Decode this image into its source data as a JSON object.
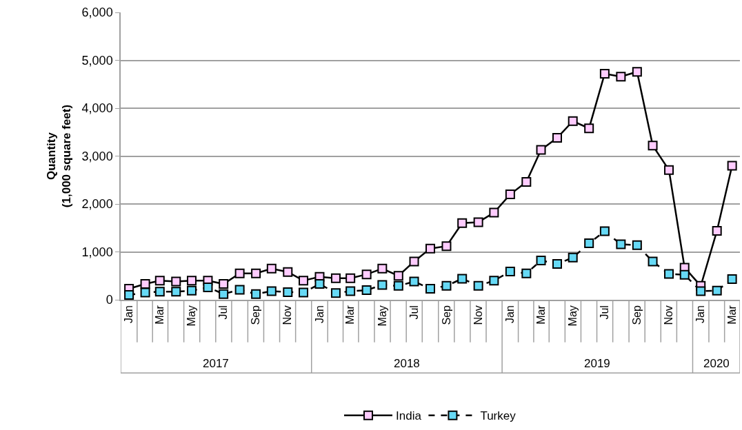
{
  "chart_data": {
    "type": "line",
    "ylabel": "Quantity\n(1,000 square feet)",
    "x": [
      "2017-01",
      "2017-02",
      "2017-03",
      "2017-04",
      "2017-05",
      "2017-06",
      "2017-07",
      "2017-08",
      "2017-09",
      "2017-10",
      "2017-11",
      "2017-12",
      "2018-01",
      "2018-02",
      "2018-03",
      "2018-04",
      "2018-05",
      "2018-06",
      "2018-07",
      "2018-08",
      "2018-09",
      "2018-10",
      "2018-11",
      "2018-12",
      "2019-01",
      "2019-02",
      "2019-03",
      "2019-04",
      "2019-05",
      "2019-06",
      "2019-07",
      "2019-08",
      "2019-09",
      "2019-10",
      "2019-11",
      "2019-12",
      "2020-01",
      "2020-02",
      "2020-03"
    ],
    "xlim": [
      "2016-12-16",
      "2020-03-16"
    ],
    "xticks": [
      {
        "value": "2017-01",
        "label": "Jan"
      },
      {
        "value": "2017-03",
        "label": "Mar"
      },
      {
        "value": "2017-05",
        "label": "May"
      },
      {
        "value": "2017-07",
        "label": "Jul"
      },
      {
        "value": "2017-09",
        "label": "Sep"
      },
      {
        "value": "2017-11",
        "label": "Nov"
      },
      {
        "value": "2018-01",
        "label": "Jan"
      },
      {
        "value": "2018-03",
        "label": "Mar"
      },
      {
        "value": "2018-05",
        "label": "May"
      },
      {
        "value": "2018-07",
        "label": "Jul"
      },
      {
        "value": "2018-09",
        "label": "Sep"
      },
      {
        "value": "2018-11",
        "label": "Nov"
      },
      {
        "value": "2019-01",
        "label": "Jan"
      },
      {
        "value": "2019-03",
        "label": "Mar"
      },
      {
        "value": "2019-05",
        "label": "May"
      },
      {
        "value": "2019-07",
        "label": "Jul"
      },
      {
        "value": "2019-09",
        "label": "Sep"
      },
      {
        "value": "2019-11",
        "label": "Nov"
      },
      {
        "value": "2020-01",
        "label": "Jan"
      },
      {
        "value": "2020-03",
        "label": "Mar"
      }
    ],
    "ylim": [
      0,
      6000
    ],
    "yticks": [
      0,
      {
        "value": 1000,
        "label": "1,000"
      },
      {
        "value": 2000,
        "label": "2,000"
      },
      {
        "value": 3000,
        "label": "3,000"
      },
      {
        "value": 4000,
        "label": "4,000"
      },
      {
        "value": 5000,
        "label": "5,000"
      },
      {
        "value": 6000,
        "label": "6,000"
      }
    ],
    "grid": "y",
    "legend": "bottom",
    "marker": "square",
    "annotations": [
      "2017",
      "2018",
      "2019",
      "2020"
    ],
    "series": [
      {
        "name": "India",
        "color": "#ffccff",
        "line_style": "solid",
        "values": [
          230,
          330,
          400,
          380,
          400,
          400,
          330,
          550,
          550,
          650,
          580,
          400,
          480,
          450,
          450,
          530,
          650,
          500,
          800,
          1070,
          1120,
          1600,
          1620,
          1820,
          2200,
          2460,
          3130,
          3380,
          3730,
          3580,
          4720,
          4660,
          4760,
          3220,
          2710,
          670,
          290,
          1440,
          2800
        ]
      },
      {
        "name": "Turkey",
        "color": "#66d9f5",
        "line_style": "dashed",
        "values": [
          100,
          150,
          170,
          170,
          190,
          260,
          120,
          210,
          120,
          180,
          160,
          150,
          330,
          140,
          180,
          200,
          310,
          290,
          380,
          230,
          290,
          440,
          290,
          400,
          590,
          550,
          820,
          750,
          880,
          1180,
          1430,
          1160,
          1140,
          800,
          540,
          520,
          180,
          190,
          430
        ]
      }
    ]
  }
}
